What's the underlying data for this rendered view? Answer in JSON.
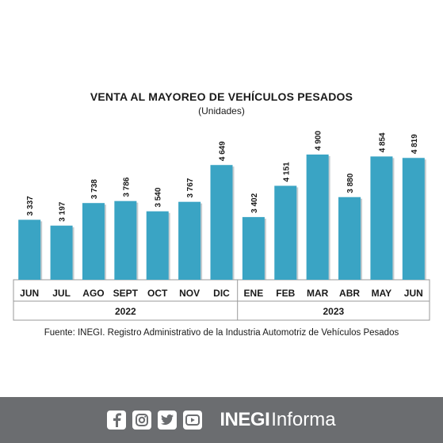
{
  "chart_data": {
    "type": "bar",
    "title": "Venta al mayoreo de vehículos pesados",
    "subtitle": "(Unidades)",
    "categories": [
      "JUN",
      "JUL",
      "AGO",
      "SEPT",
      "OCT",
      "NOV",
      "DIC",
      "ENE",
      "FEB",
      "MAR",
      "ABR",
      "MAY",
      "JUN"
    ],
    "values": [
      3337,
      3197,
      3738,
      3786,
      3540,
      3767,
      4649,
      3402,
      4151,
      4900,
      3880,
      4854,
      4819
    ],
    "value_labels": [
      "3 337",
      "3 197",
      "3 738",
      "3 786",
      "3 540",
      "3 767",
      "4 649",
      "3 402",
      "4 151",
      "4 900",
      "3 880",
      "4 854",
      "4 819"
    ],
    "year_groups": [
      {
        "label": "2022",
        "count": 7
      },
      {
        "label": "2023",
        "count": 6
      }
    ],
    "grid": false,
    "ylim": [
      0,
      5000
    ],
    "bar_color": "#3aa4c4"
  },
  "title_display": "VENTA AL MAYOREO DE VEHÍCULOS PESADOS",
  "source": "Fuente: INEGI. Registro Administrativo de la Industria Automotriz de Vehículos Pesados",
  "footer": {
    "brand_bold": "INEGI",
    "brand_light": "Informa",
    "icons": [
      "facebook-icon",
      "instagram-icon",
      "twitter-icon",
      "youtube-icon"
    ],
    "background": "#6b6d70"
  }
}
